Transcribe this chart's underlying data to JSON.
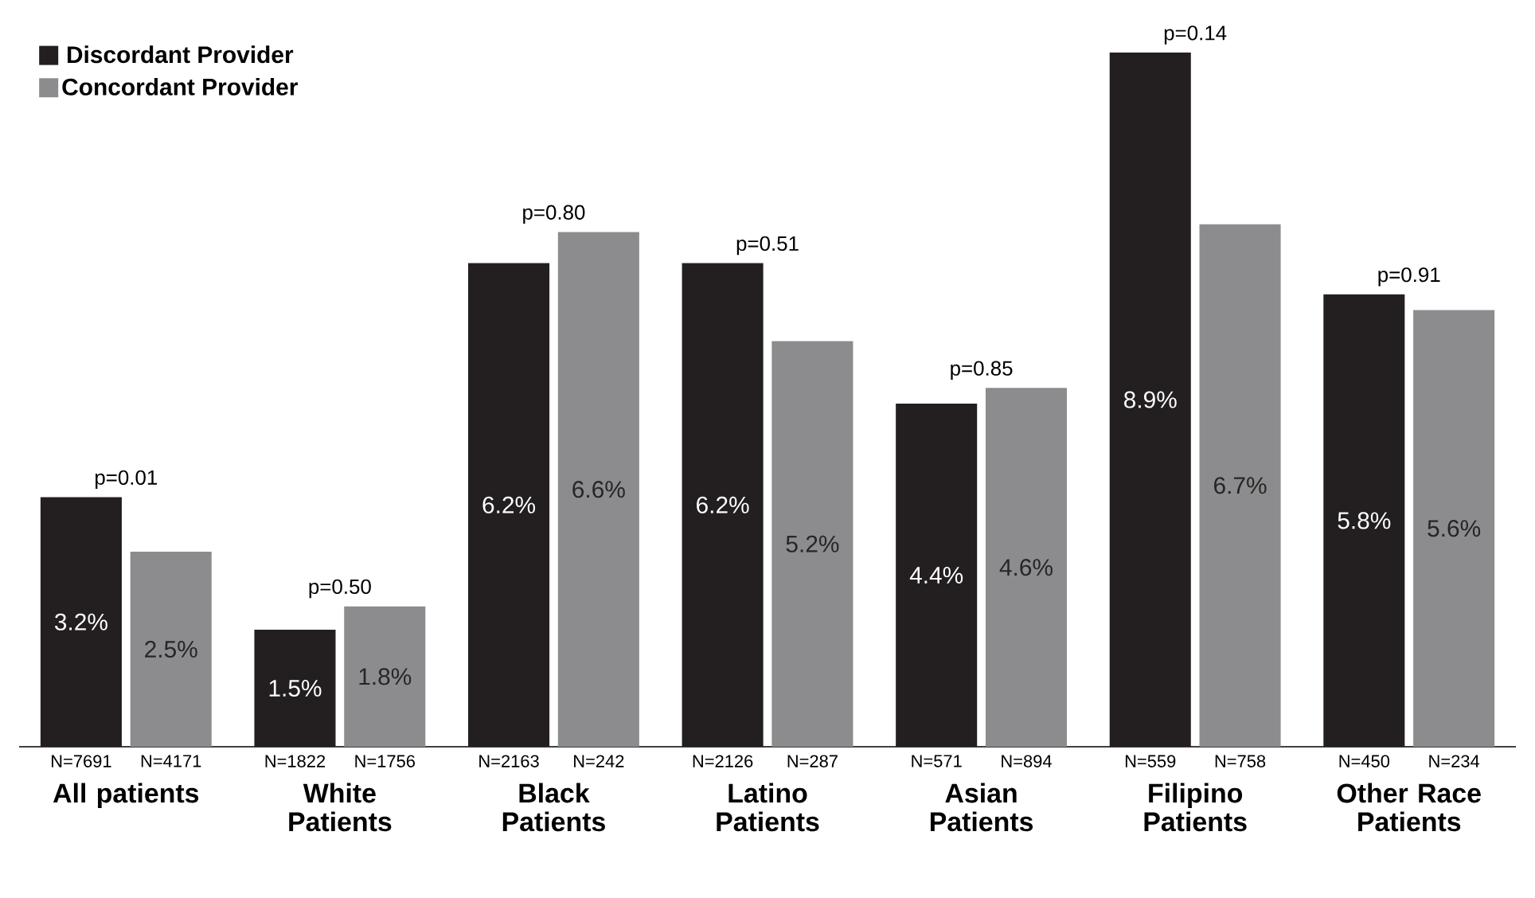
{
  "chart_data": {
    "type": "bar",
    "categories": [
      "All patients",
      "White Patients",
      "Black Patients",
      "Latino Patients",
      "Asian Patients",
      "Filipino Patients",
      "Other Race Patients"
    ],
    "series": [
      {
        "name": "Discordant Provider",
        "color": "#231f20",
        "values": [
          3.2,
          1.5,
          6.2,
          6.2,
          4.4,
          8.9,
          5.8
        ],
        "value_labels": [
          "3.2%",
          "1.5%",
          "6.2%",
          "6.2%",
          "4.4%",
          "8.9%",
          "5.8%"
        ]
      },
      {
        "name": "Concordant Provider",
        "color": "#8c8c8e",
        "values": [
          2.5,
          1.8,
          6.6,
          5.2,
          4.6,
          6.7,
          5.6
        ],
        "value_labels": [
          "2.5%",
          "1.8%",
          "6.6%",
          "5.2%",
          "4.6%",
          "6.7%",
          "5.6%"
        ]
      }
    ],
    "legend": "top left",
    "annotations": [
      {
        "text": "N=7691",
        "x": "All patients",
        "y": 0
      },
      {
        "text": "N=4171",
        "x": "All patients",
        "y": 0
      },
      {
        "text": "p=0.01",
        "x": "All patients",
        "y": 3.2
      },
      {
        "text": "N=1822",
        "x": "White Patients",
        "y": 0
      },
      {
        "text": "N=1756",
        "x": "White Patients",
        "y": 0
      },
      {
        "text": "p=0.50",
        "x": "White Patients",
        "y": 1.8
      },
      {
        "text": "N=2163",
        "x": "Black Patients",
        "y": 0
      },
      {
        "text": "N=242",
        "x": "Black Patients",
        "y": 0
      },
      {
        "text": "p=0.80",
        "x": "Black Patients",
        "y": 6.6
      },
      {
        "text": "N=2126",
        "x": "Latino Patients",
        "y": 0
      },
      {
        "text": "N=287",
        "x": "Latino Patients",
        "y": 0
      },
      {
        "text": "p=0.51",
        "x": "Latino Patients",
        "y": 6.2
      },
      {
        "text": "N=571",
        "x": "Asian Patients",
        "y": 0
      },
      {
        "text": "N=894",
        "x": "Asian Patients",
        "y": 0
      },
      {
        "text": "p=0.85",
        "x": "Asian Patients",
        "y": 4.6
      },
      {
        "text": "N=559",
        "x": "Filipino Patients",
        "y": 0
      },
      {
        "text": "N=758",
        "x": "Filipino Patients",
        "y": 0
      },
      {
        "text": "p=0.14",
        "x": "Filipino Patients",
        "y": 8.9
      },
      {
        "text": "N=450",
        "x": "Other Race Patients",
        "y": 0
      },
      {
        "text": "N=234",
        "x": "Other Race Patients",
        "y": 0
      },
      {
        "text": "p=0.91",
        "x": "Other Race Patients",
        "y": 5.8
      }
    ]
  }
}
